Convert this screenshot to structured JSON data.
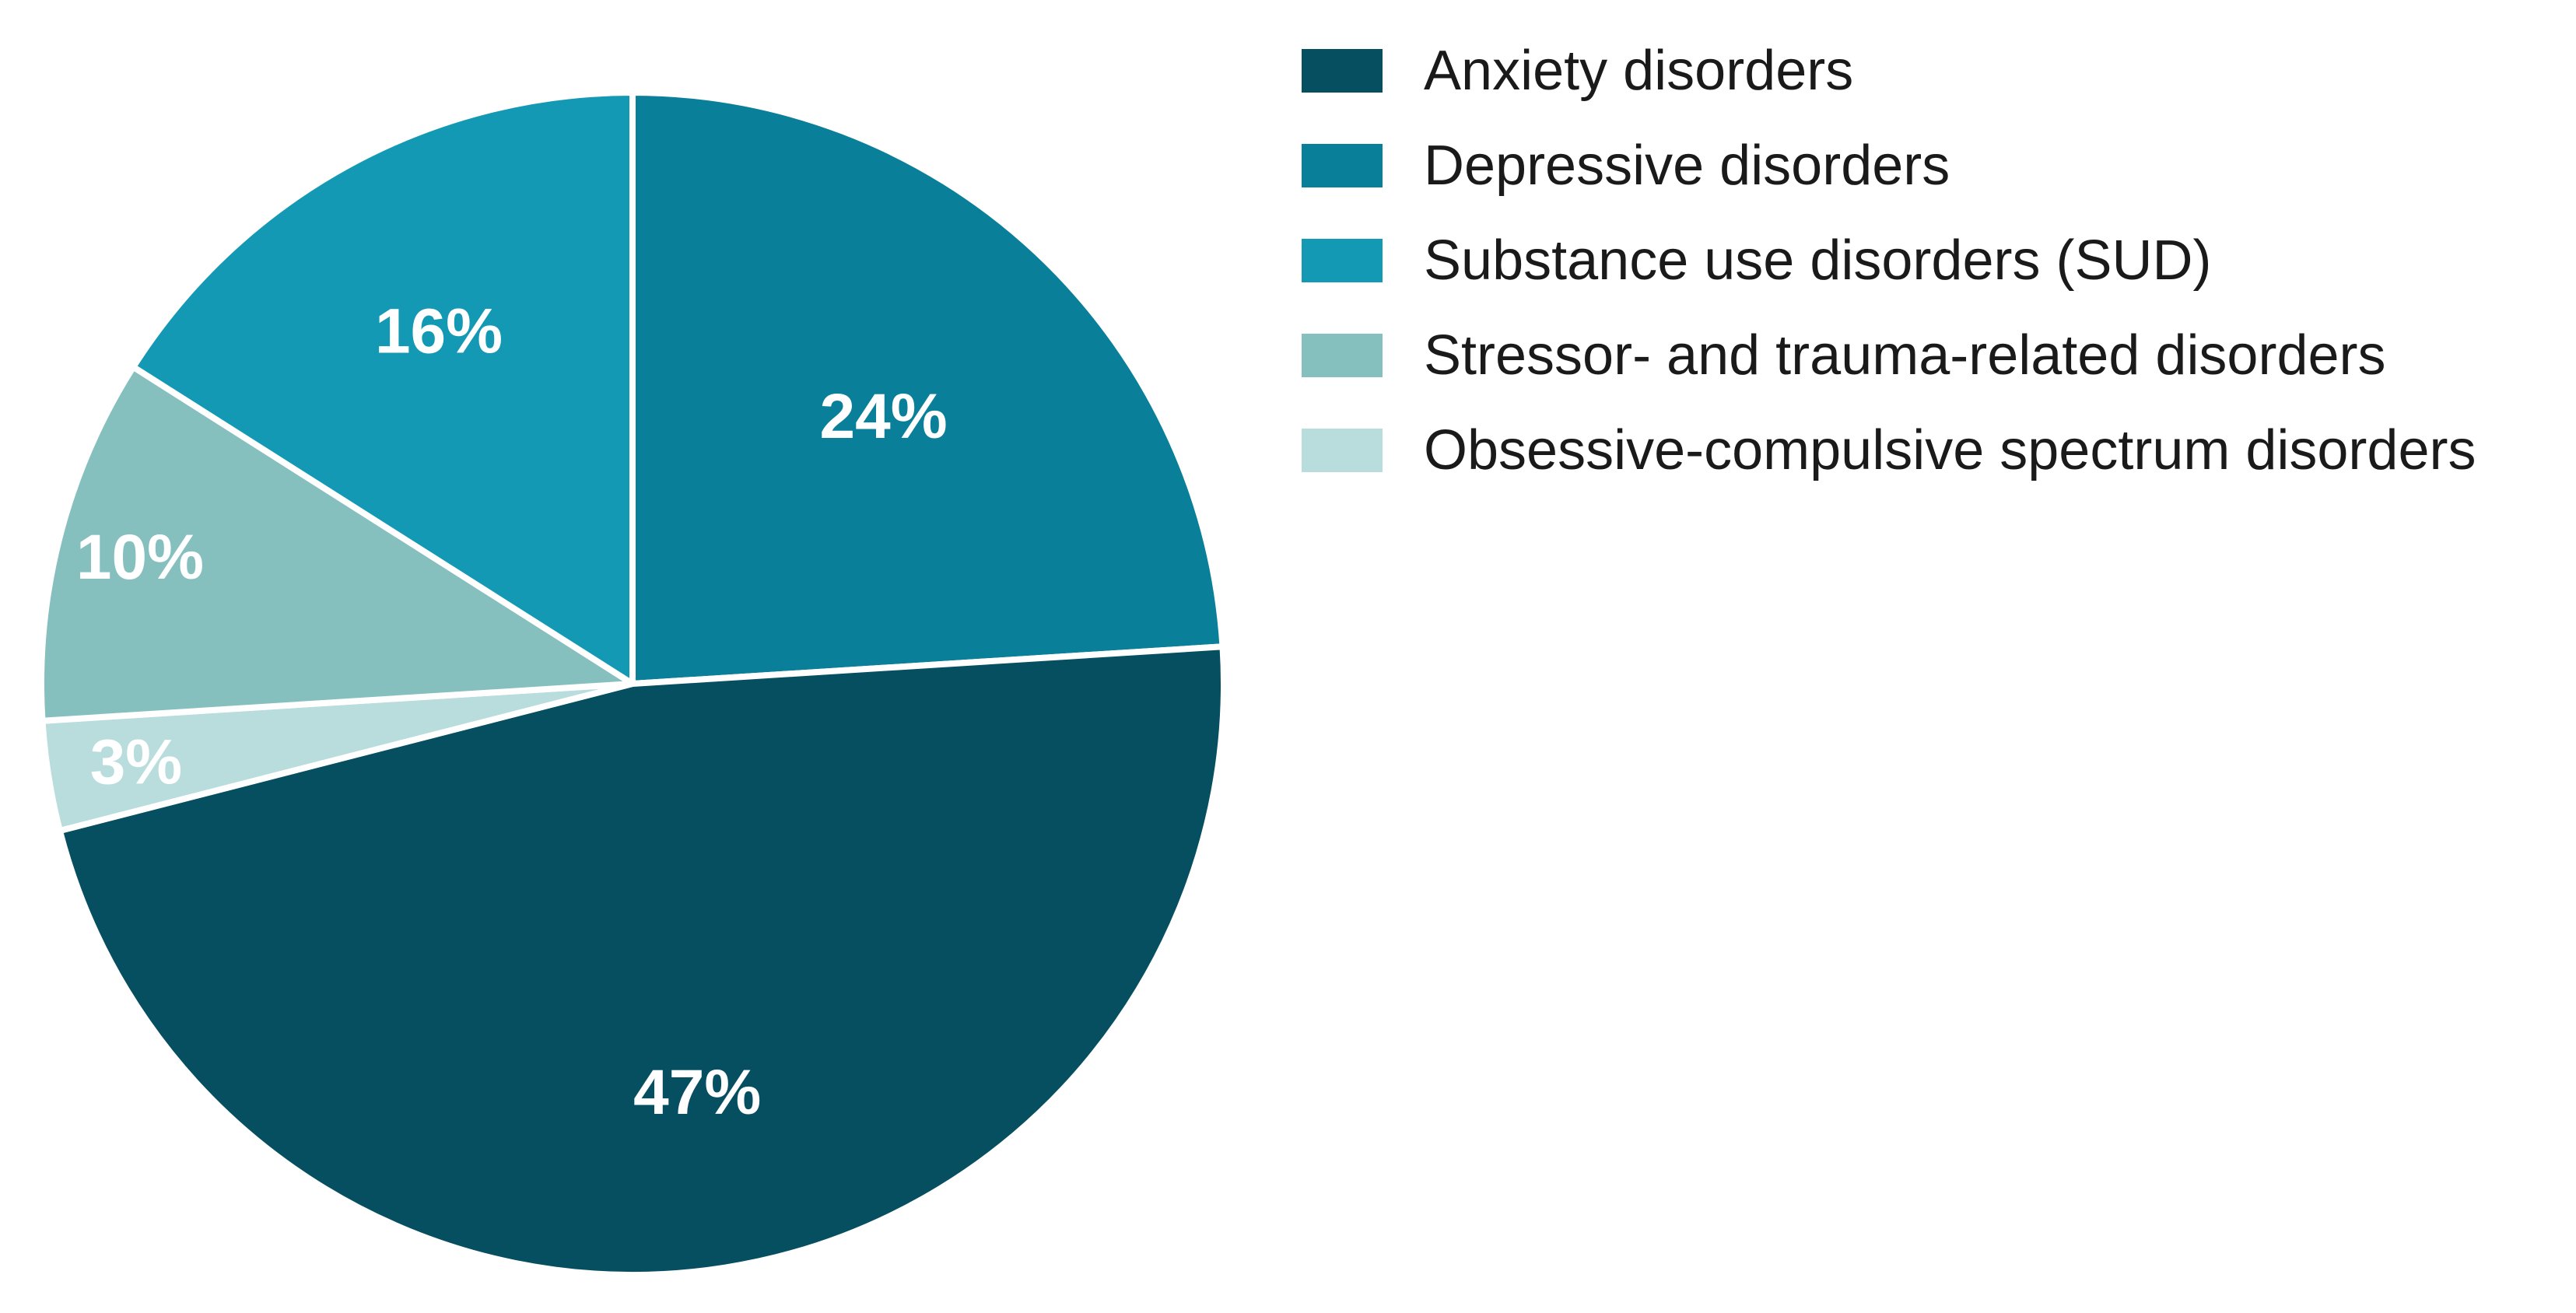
{
  "chart_data": {
    "type": "pie",
    "title": "",
    "start_angle_deg": 0,
    "direction": "clockwise",
    "legend_position": "top-right",
    "slices": [
      {
        "label": "Depressive disorders",
        "value": 24,
        "display": "24%",
        "color": "#097f99"
      },
      {
        "label": "Anxiety disorders",
        "value": 47,
        "display": "47%",
        "color": "#064f60"
      },
      {
        "label": "Obsessive-compulsive spectrum disorders",
        "value": 3,
        "display": "3%",
        "color": "#b9dcdd"
      },
      {
        "label": "Stressor- and trauma-related disorders",
        "value": 10,
        "display": "10%",
        "color": "#85c0bf"
      },
      {
        "label": "Substance use disorders (SUD)",
        "value": 16,
        "display": "16%",
        "color": "#1399b3"
      }
    ],
    "legend": [
      {
        "label": "Anxiety disorders",
        "color": "#064f60"
      },
      {
        "label": "Depressive disorders",
        "color": "#097f99"
      },
      {
        "label": "Substance use disorders (SUD)",
        "color": "#1399b3"
      },
      {
        "label": "Stressor- and trauma-related disorders",
        "color": "#85c0bf"
      },
      {
        "label": "Obsessive-compulsive spectrum disorders",
        "color": "#b9dcdd"
      }
    ]
  }
}
